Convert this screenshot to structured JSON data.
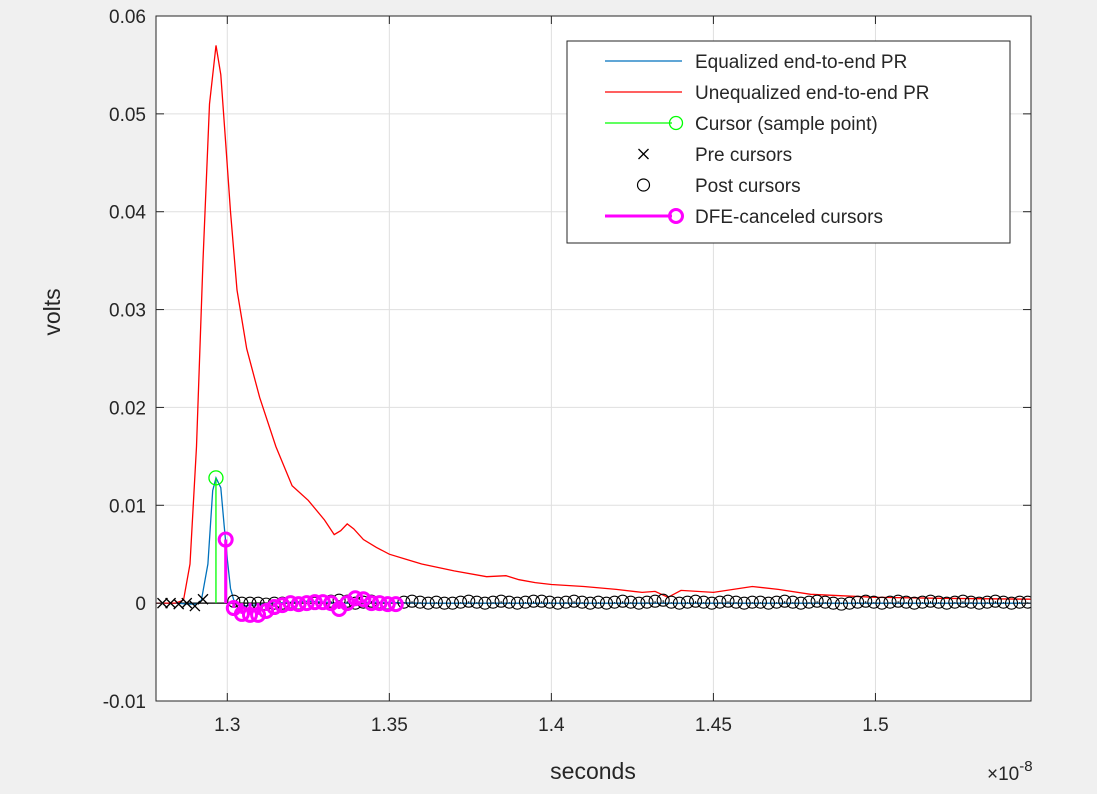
{
  "chart_data": {
    "type": "line",
    "xlabel": "seconds",
    "ylabel": "volts",
    "x_exponent_prefix": "×10",
    "x_exponent": "-8",
    "xlim": [
      1.278,
      1.548
    ],
    "ylim": [
      -0.01,
      0.06
    ],
    "x_ticks": [
      1.3,
      1.35,
      1.4,
      1.45,
      1.5
    ],
    "x_tick_labels": [
      "1.3",
      "1.35",
      "1.4",
      "1.45",
      "1.5"
    ],
    "y_ticks": [
      -0.01,
      0,
      0.01,
      0.02,
      0.03,
      0.04,
      0.05,
      0.06
    ],
    "y_tick_labels": [
      "-0.01",
      "0",
      "0.01",
      "0.02",
      "0.03",
      "0.04",
      "0.05",
      "0.06"
    ],
    "grid": true,
    "legend_position": "top-right",
    "series": [
      {
        "name": "Equalized end-to-end PR",
        "color": "#0072bd",
        "kind": "line",
        "x": [
          1.278,
          1.284,
          1.288,
          1.2905,
          1.292,
          1.294,
          1.2955,
          1.2965,
          1.298,
          1.299,
          1.3,
          1.301,
          1.302,
          1.304,
          1.308,
          1.315,
          1.325,
          1.335,
          1.345,
          1.36,
          1.4,
          1.45,
          1.5,
          1.548
        ],
        "y": [
          0,
          0,
          -0.0001,
          -0.0001,
          0.0003,
          0.004,
          0.0115,
          0.0128,
          0.0118,
          0.008,
          0.0045,
          0.0015,
          0.0003,
          -0.0003,
          -0.0002,
          0,
          0.0002,
          0,
          0.0001,
          0,
          0,
          0,
          0,
          0
        ]
      },
      {
        "name": "Unequalized end-to-end PR",
        "color": "#ff0000",
        "kind": "line",
        "x": [
          1.278,
          1.284,
          1.2865,
          1.2885,
          1.2905,
          1.2925,
          1.2945,
          1.2965,
          1.298,
          1.2995,
          1.301,
          1.303,
          1.306,
          1.31,
          1.315,
          1.32,
          1.325,
          1.33,
          1.333,
          1.335,
          1.337,
          1.339,
          1.342,
          1.346,
          1.35,
          1.355,
          1.36,
          1.37,
          1.38,
          1.386,
          1.39,
          1.395,
          1.4,
          1.41,
          1.42,
          1.428,
          1.432,
          1.436,
          1.44,
          1.45,
          1.462,
          1.47,
          1.48,
          1.5,
          1.52,
          1.548
        ],
        "y": [
          0,
          0,
          0.0003,
          0.004,
          0.016,
          0.035,
          0.051,
          0.057,
          0.054,
          0.047,
          0.04,
          0.032,
          0.026,
          0.021,
          0.016,
          0.012,
          0.0105,
          0.0085,
          0.007,
          0.0074,
          0.0081,
          0.0076,
          0.0065,
          0.0057,
          0.005,
          0.0045,
          0.004,
          0.0033,
          0.0027,
          0.0028,
          0.0024,
          0.0021,
          0.0019,
          0.0017,
          0.0014,
          0.0011,
          0.0012,
          0.0006,
          0.0013,
          0.0011,
          0.0017,
          0.0014,
          0.0009,
          0.0006,
          0.0005,
          0.0004
        ]
      },
      {
        "name": "Cursor (sample point)",
        "color": "#00ff00",
        "kind": "stem-circle",
        "x": [
          1.2965
        ],
        "y": [
          0.0128
        ]
      },
      {
        "name": "Pre cursors",
        "color": "#000000",
        "kind": "cross",
        "x": [
          1.28,
          1.2825,
          1.285,
          1.2875,
          1.29,
          1.2925
        ],
        "y": [
          0,
          0,
          -0.0001,
          0,
          -0.0003,
          0.0004
        ]
      },
      {
        "name": "Post cursors",
        "color": "#000000",
        "kind": "circle",
        "x_start": 1.2995,
        "x_step": 0.0025,
        "count": 100,
        "y": [
          0.0065,
          0.0002,
          0,
          0,
          0,
          -0.0001,
          0,
          0,
          0.0001,
          0,
          0,
          0,
          0.0001,
          0.0002,
          0.0003,
          0.0002,
          0,
          0.0001,
          0.0002,
          0.0001,
          0,
          -0.0001,
          0.0001,
          0.0002,
          0.0001,
          0,
          0.0001,
          0,
          0,
          0.0001,
          0.0002,
          0.0001,
          0,
          0.0001,
          0.0002,
          0.0001,
          0,
          0.0001,
          0.0002,
          0.0002,
          0.0001,
          0,
          0.0001,
          0.0002,
          0.0001,
          0,
          0.0001,
          0,
          0.0001,
          0.0002,
          0.0001,
          0,
          0.0001,
          0.0002,
          0.0003,
          0.0001,
          0,
          0.0001,
          0.0002,
          0.0001,
          0,
          0.0001,
          0.0002,
          0.0001,
          0,
          0.0001,
          0.0001,
          0,
          0.0001,
          0.0002,
          0.0001,
          0,
          0.0001,
          0.0002,
          0.0001,
          0,
          -0.0001,
          0,
          0.0001,
          0.0002,
          0.0001,
          0,
          0.0001,
          0.0002,
          0.0001,
          0,
          0.0001,
          0.0002,
          0.0001,
          0,
          0.0001,
          0.0002,
          0.0001,
          0,
          0.0001,
          0.0002,
          0.0001,
          0,
          0.0001,
          0.0001
        ]
      },
      {
        "name": "DFE-canceled cursors",
        "color": "#ff00ff",
        "kind": "stem-circle-thick",
        "x": [
          1.2995,
          1.302,
          1.3045,
          1.307,
          1.3095,
          1.312,
          1.3145,
          1.317,
          1.3195,
          1.322,
          1.3245,
          1.327,
          1.3295,
          1.332,
          1.3345,
          1.337,
          1.3395,
          1.342,
          1.3445,
          1.347,
          1.3495,
          1.352
        ],
        "y": [
          0.0065,
          -0.0005,
          -0.0011,
          -0.0012,
          -0.0012,
          -0.0008,
          -0.0004,
          -0.0002,
          0,
          -0.0001,
          0,
          0.0001,
          0.0001,
          0,
          -0.0006,
          0,
          0.0005,
          0.0004,
          0,
          0,
          -0.0001,
          -0.0001
        ]
      }
    ]
  }
}
